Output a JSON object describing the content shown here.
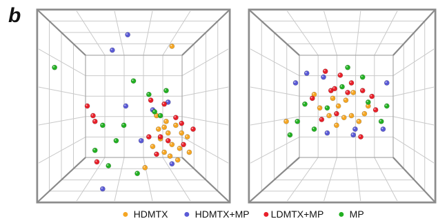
{
  "figure": {
    "panel_letter": "b"
  },
  "legend": [
    {
      "label": "HDMTX",
      "color": "#f5a623"
    },
    {
      "label": "HDMTX+MP",
      "color": "#5a5ad6"
    },
    {
      "label": "LDMTX+MP",
      "color": "#e8202a"
    },
    {
      "label": "MP",
      "color": "#22b022"
    }
  ],
  "chart_data": [
    {
      "type": "scatter",
      "title": "",
      "xlabel": "",
      "ylabel": "",
      "grid": true,
      "series": [
        {
          "name": "HDMTX",
          "points": [
            [
              0.7,
              0.19
            ],
            [
              0.62,
              0.55
            ],
            [
              0.66,
              0.61
            ],
            [
              0.64,
              0.67
            ],
            [
              0.68,
              0.64
            ],
            [
              0.72,
              0.6
            ],
            [
              0.7,
              0.7
            ],
            [
              0.74,
              0.72
            ],
            [
              0.66,
              0.74
            ],
            [
              0.6,
              0.71
            ],
            [
              0.78,
              0.66
            ],
            [
              0.73,
              0.78
            ],
            [
              0.79,
              0.74
            ],
            [
              0.56,
              0.82
            ],
            [
              0.67,
              0.58
            ],
            [
              0.75,
              0.64
            ],
            [
              0.63,
              0.62
            ],
            [
              0.69,
              0.76
            ]
          ]
        },
        {
          "name": "HDMTX+MP",
          "points": [
            [
              0.47,
              0.13
            ],
            [
              0.39,
              0.21
            ],
            [
              0.68,
              0.48
            ],
            [
              0.46,
              0.5
            ],
            [
              0.6,
              0.52
            ],
            [
              0.7,
              0.8
            ],
            [
              0.34,
              0.93
            ],
            [
              0.54,
              0.68
            ]
          ]
        },
        {
          "name": "LDMTX+MP",
          "points": [
            [
              0.26,
              0.5
            ],
            [
              0.29,
              0.55
            ],
            [
              0.3,
              0.58
            ],
            [
              0.59,
              0.47
            ],
            [
              0.66,
              0.49
            ],
            [
              0.72,
              0.56
            ],
            [
              0.64,
              0.66
            ],
            [
              0.75,
              0.59
            ],
            [
              0.81,
              0.62
            ],
            [
              0.68,
              0.68
            ],
            [
              0.58,
              0.66
            ],
            [
              0.62,
              0.75
            ],
            [
              0.31,
              0.79
            ],
            [
              0.76,
              0.7
            ]
          ]
        },
        {
          "name": "MP",
          "points": [
            [
              0.09,
              0.3
            ],
            [
              0.5,
              0.37
            ],
            [
              0.58,
              0.44
            ],
            [
              0.67,
              0.42
            ],
            [
              0.34,
              0.6
            ],
            [
              0.41,
              0.68
            ],
            [
              0.64,
              0.55
            ],
            [
              0.3,
              0.73
            ],
            [
              0.37,
              0.81
            ],
            [
              0.52,
              0.85
            ],
            [
              0.61,
              0.53
            ],
            [
              0.45,
              0.6
            ]
          ]
        }
      ]
    },
    {
      "type": "scatter",
      "title": "",
      "xlabel": "",
      "ylabel": "",
      "grid": true,
      "series": [
        {
          "name": "HDMTX",
          "points": [
            [
              0.35,
              0.44
            ],
            [
              0.45,
              0.46
            ],
            [
              0.48,
              0.5
            ],
            [
              0.52,
              0.47
            ],
            [
              0.56,
              0.43
            ],
            [
              0.43,
              0.55
            ],
            [
              0.55,
              0.55
            ],
            [
              0.62,
              0.54
            ],
            [
              0.2,
              0.58
            ],
            [
              0.38,
              0.51
            ],
            [
              0.47,
              0.6
            ],
            [
              0.59,
              0.58
            ],
            [
              0.64,
              0.5
            ],
            [
              0.51,
              0.56
            ]
          ]
        },
        {
          "name": "HDMTX+MP",
          "points": [
            [
              0.25,
              0.38
            ],
            [
              0.31,
              0.33
            ],
            [
              0.74,
              0.38
            ],
            [
              0.42,
              0.64
            ],
            [
              0.57,
              0.62
            ],
            [
              0.72,
              0.62
            ],
            [
              0.4,
              0.35
            ],
            [
              0.56,
              0.65
            ]
          ]
        },
        {
          "name": "LDMTX+MP",
          "points": [
            [
              0.41,
              0.32
            ],
            [
              0.49,
              0.34
            ],
            [
              0.55,
              0.38
            ],
            [
              0.44,
              0.42
            ],
            [
              0.61,
              0.42
            ],
            [
              0.66,
              0.45
            ],
            [
              0.68,
              0.52
            ],
            [
              0.34,
              0.46
            ],
            [
              0.47,
              0.54
            ],
            [
              0.6,
              0.66
            ],
            [
              0.46,
              0.41
            ],
            [
              0.53,
              0.43
            ],
            [
              0.39,
              0.57
            ]
          ]
        },
        {
          "name": "MP",
          "points": [
            [
              0.53,
              0.3
            ],
            [
              0.61,
              0.35
            ],
            [
              0.64,
              0.48
            ],
            [
              0.3,
              0.49
            ],
            [
              0.74,
              0.5
            ],
            [
              0.26,
              0.58
            ],
            [
              0.71,
              0.58
            ],
            [
              0.35,
              0.62
            ],
            [
              0.22,
              0.65
            ],
            [
              0.5,
              0.4
            ],
            [
              0.42,
              0.51
            ]
          ]
        }
      ]
    }
  ]
}
